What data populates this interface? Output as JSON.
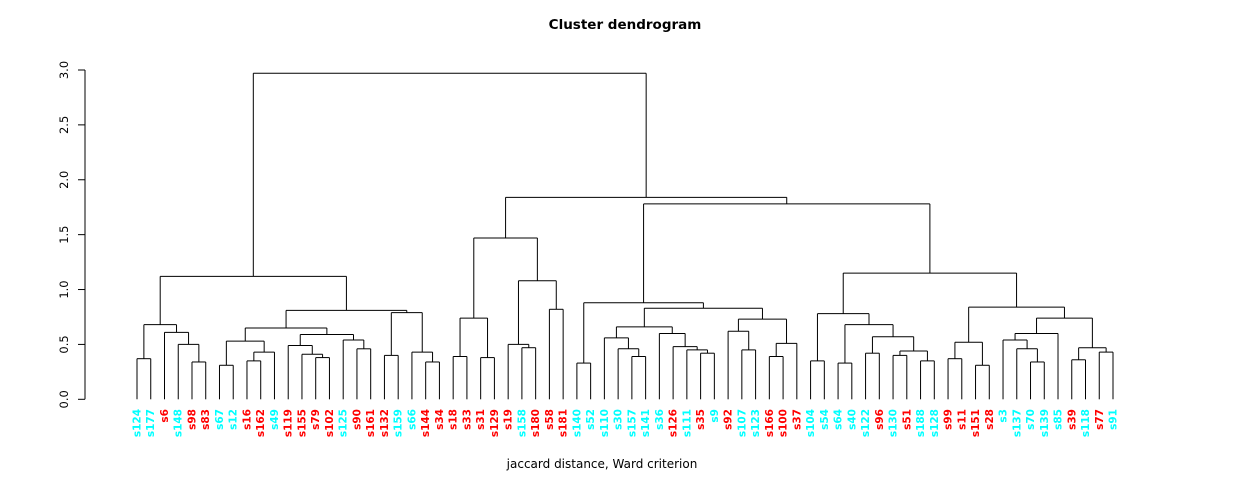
{
  "chart_data": {
    "type": "dendrogram",
    "title": "Cluster dendrogram",
    "xlabel": "jaccard distance, Ward criterion",
    "ylabel": "",
    "ylim": [
      0,
      3
    ],
    "yticks": [
      0.0,
      0.5,
      1.0,
      1.5,
      2.0,
      2.5,
      3.0
    ],
    "grid": false,
    "legend": "none",
    "colors": {
      "red": "#ff0000",
      "cyan": "#00ffff",
      "line": "#000000"
    },
    "leaves": [
      {
        "label": "s124",
        "color": "cyan"
      },
      {
        "label": "s177",
        "color": "cyan"
      },
      {
        "label": "s6",
        "color": "red"
      },
      {
        "label": "s148",
        "color": "cyan"
      },
      {
        "label": "s98",
        "color": "red"
      },
      {
        "label": "s83",
        "color": "red"
      },
      {
        "label": "s67",
        "color": "cyan"
      },
      {
        "label": "s12",
        "color": "cyan"
      },
      {
        "label": "s16",
        "color": "red"
      },
      {
        "label": "s162",
        "color": "red"
      },
      {
        "label": "s49",
        "color": "cyan"
      },
      {
        "label": "s119",
        "color": "red"
      },
      {
        "label": "s155",
        "color": "red"
      },
      {
        "label": "s79",
        "color": "red"
      },
      {
        "label": "s102",
        "color": "red"
      },
      {
        "label": "s125",
        "color": "cyan"
      },
      {
        "label": "s90",
        "color": "red"
      },
      {
        "label": "s161",
        "color": "red"
      },
      {
        "label": "s132",
        "color": "red"
      },
      {
        "label": "s159",
        "color": "cyan"
      },
      {
        "label": "s66",
        "color": "cyan"
      },
      {
        "label": "s144",
        "color": "red"
      },
      {
        "label": "s34",
        "color": "red"
      },
      {
        "label": "s18",
        "color": "red"
      },
      {
        "label": "s33",
        "color": "red"
      },
      {
        "label": "s31",
        "color": "red"
      },
      {
        "label": "s129",
        "color": "red"
      },
      {
        "label": "s19",
        "color": "red"
      },
      {
        "label": "s158",
        "color": "cyan"
      },
      {
        "label": "s180",
        "color": "red"
      },
      {
        "label": "s58",
        "color": "red"
      },
      {
        "label": "s181",
        "color": "red"
      },
      {
        "label": "s140",
        "color": "cyan"
      },
      {
        "label": "s52",
        "color": "cyan"
      },
      {
        "label": "s110",
        "color": "cyan"
      },
      {
        "label": "s30",
        "color": "cyan"
      },
      {
        "label": "s157",
        "color": "cyan"
      },
      {
        "label": "s141",
        "color": "cyan"
      },
      {
        "label": "s36",
        "color": "cyan"
      },
      {
        "label": "s126",
        "color": "red"
      },
      {
        "label": "s111",
        "color": "cyan"
      },
      {
        "label": "s35",
        "color": "red"
      },
      {
        "label": "s9",
        "color": "cyan"
      },
      {
        "label": "s92",
        "color": "red"
      },
      {
        "label": "s107",
        "color": "cyan"
      },
      {
        "label": "s123",
        "color": "cyan"
      },
      {
        "label": "s166",
        "color": "red"
      },
      {
        "label": "s100",
        "color": "red"
      },
      {
        "label": "s37",
        "color": "red"
      },
      {
        "label": "s104",
        "color": "cyan"
      },
      {
        "label": "s54",
        "color": "cyan"
      },
      {
        "label": "s64",
        "color": "cyan"
      },
      {
        "label": "s40",
        "color": "cyan"
      },
      {
        "label": "s122",
        "color": "cyan"
      },
      {
        "label": "s96",
        "color": "red"
      },
      {
        "label": "s130",
        "color": "cyan"
      },
      {
        "label": "s51",
        "color": "red"
      },
      {
        "label": "s188",
        "color": "cyan"
      },
      {
        "label": "s128",
        "color": "cyan"
      },
      {
        "label": "s99",
        "color": "red"
      },
      {
        "label": "s11",
        "color": "red"
      },
      {
        "label": "s151",
        "color": "red"
      },
      {
        "label": "s28",
        "color": "red"
      },
      {
        "label": "s3",
        "color": "cyan"
      },
      {
        "label": "s137",
        "color": "cyan"
      },
      {
        "label": "s70",
        "color": "cyan"
      },
      {
        "label": "s139",
        "color": "cyan"
      },
      {
        "label": "s85",
        "color": "cyan"
      },
      {
        "label": "s39",
        "color": "red"
      },
      {
        "label": "s118",
        "color": "cyan"
      },
      {
        "label": "s77",
        "color": "red"
      },
      {
        "label": "s91",
        "color": "cyan"
      }
    ],
    "tree": {
      "h": 2.97,
      "c": [
        {
          "h": 1.12,
          "c": [
            {
              "h": 0.68,
              "c": [
                {
                  "h": 0.37,
                  "c": [
                    "s124",
                    "s177"
                  ]
                },
                {
                  "h": 0.61,
                  "c": [
                    "s6",
                    {
                      "h": 0.5,
                      "c": [
                        "s148",
                        {
                          "h": 0.34,
                          "c": [
                            "s98",
                            "s83"
                          ]
                        }
                      ]
                    }
                  ]
                }
              ]
            },
            {
              "h": 0.81,
              "c": [
                {
                  "h": 0.65,
                  "c": [
                    {
                      "h": 0.53,
                      "c": [
                        {
                          "h": 0.31,
                          "c": [
                            "s67",
                            "s12"
                          ]
                        },
                        {
                          "h": 0.43,
                          "c": [
                            {
                              "h": 0.35,
                              "c": [
                                "s16",
                                "s162"
                              ]
                            },
                            "s49"
                          ]
                        }
                      ]
                    },
                    {
                      "h": 0.59,
                      "c": [
                        {
                          "h": 0.49,
                          "c": [
                            "s119",
                            {
                              "h": 0.41,
                              "c": [
                                "s155",
                                {
                                  "h": 0.38,
                                  "c": [
                                    "s79",
                                    "s102"
                                  ]
                                }
                              ]
                            }
                          ]
                        },
                        {
                          "h": 0.54,
                          "c": [
                            "s125",
                            {
                              "h": 0.46,
                              "c": [
                                "s90",
                                "s161"
                              ]
                            }
                          ]
                        }
                      ]
                    }
                  ]
                },
                {
                  "h": 0.79,
                  "c": [
                    {
                      "h": 0.4,
                      "c": [
                        "s132",
                        "s159"
                      ]
                    },
                    {
                      "h": 0.43,
                      "c": [
                        "s66",
                        {
                          "h": 0.34,
                          "c": [
                            "s144",
                            "s34"
                          ]
                        }
                      ]
                    }
                  ]
                }
              ]
            }
          ]
        },
        {
          "h": 1.84,
          "c": [
            {
              "h": 1.47,
              "c": [
                {
                  "h": 0.74,
                  "c": [
                    {
                      "h": 0.39,
                      "c": [
                        "s18",
                        "s33"
                      ]
                    },
                    {
                      "h": 0.38,
                      "c": [
                        "s31",
                        "s129"
                      ]
                    }
                  ]
                },
                {
                  "h": 1.08,
                  "c": [
                    {
                      "h": 0.5,
                      "c": [
                        "s19",
                        {
                          "h": 0.47,
                          "c": [
                            "s158",
                            "s180"
                          ]
                        }
                      ]
                    },
                    {
                      "h": 0.82,
                      "c": [
                        "s58",
                        "s181"
                      ]
                    }
                  ]
                }
              ]
            },
            {
              "h": 1.78,
              "c": [
                {
                  "h": 0.88,
                  "c": [
                    {
                      "h": 0.33,
                      "c": [
                        "s140",
                        "s52"
                      ]
                    },
                    {
                      "h": 0.83,
                      "c": [
                        {
                          "h": 0.66,
                          "c": [
                            {
                              "h": 0.56,
                              "c": [
                                "s110",
                                {
                                  "h": 0.46,
                                  "c": [
                                    "s30",
                                    {
                                      "h": 0.39,
                                      "c": [
                                        "s157",
                                        "s141"
                                      ]
                                    }
                                  ]
                                }
                              ]
                            },
                            {
                              "h": 0.6,
                              "c": [
                                "s36",
                                {
                                  "h": 0.48,
                                  "c": [
                                    "s126",
                                    {
                                      "h": 0.45,
                                      "c": [
                                        "s111",
                                        {
                                          "h": 0.42,
                                          "c": [
                                            "s35",
                                            "s9"
                                          ]
                                        }
                                      ]
                                    }
                                  ]
                                }
                              ]
                            }
                          ]
                        },
                        {
                          "h": 0.73,
                          "c": [
                            {
                              "h": 0.62,
                              "c": [
                                "s92",
                                {
                                  "h": 0.45,
                                  "c": [
                                    "s107",
                                    "s123"
                                  ]
                                }
                              ]
                            },
                            {
                              "h": 0.51,
                              "c": [
                                {
                                  "h": 0.39,
                                  "c": [
                                    "s166",
                                    "s100"
                                  ]
                                },
                                "s37"
                              ]
                            }
                          ]
                        }
                      ]
                    }
                  ]
                },
                {
                  "h": 1.15,
                  "c": [
                    {
                      "h": 0.78,
                      "c": [
                        {
                          "h": 0.35,
                          "c": [
                            "s104",
                            "s54"
                          ]
                        },
                        {
                          "h": 0.68,
                          "c": [
                            {
                              "h": 0.33,
                              "c": [
                                "s64",
                                "s40"
                              ]
                            },
                            {
                              "h": 0.57,
                              "c": [
                                {
                                  "h": 0.42,
                                  "c": [
                                    "s122",
                                    "s96"
                                  ]
                                },
                                {
                                  "h": 0.44,
                                  "c": [
                                    {
                                      "h": 0.4,
                                      "c": [
                                        "s130",
                                        "s51"
                                      ]
                                    },
                                    {
                                      "h": 0.35,
                                      "c": [
                                        "s188",
                                        "s128"
                                      ]
                                    }
                                  ]
                                }
                              ]
                            }
                          ]
                        }
                      ]
                    },
                    {
                      "h": 0.84,
                      "c": [
                        {
                          "h": 0.52,
                          "c": [
                            {
                              "h": 0.37,
                              "c": [
                                "s99",
                                "s11"
                              ]
                            },
                            {
                              "h": 0.31,
                              "c": [
                                "s151",
                                "s28"
                              ]
                            }
                          ]
                        },
                        {
                          "h": 0.74,
                          "c": [
                            {
                              "h": 0.6,
                              "c": [
                                {
                                  "h": 0.54,
                                  "c": [
                                    "s3",
                                    {
                                      "h": 0.46,
                                      "c": [
                                        "s137",
                                        {
                                          "h": 0.34,
                                          "c": [
                                            "s70",
                                            "s139"
                                          ]
                                        }
                                      ]
                                    }
                                  ]
                                },
                                "s85"
                              ]
                            },
                            {
                              "h": 0.47,
                              "c": [
                                {
                                  "h": 0.36,
                                  "c": [
                                    "s39",
                                    "s118"
                                  ]
                                },
                                {
                                  "h": 0.43,
                                  "c": [
                                    "s77",
                                    "s91"
                                  ]
                                }
                              ]
                            }
                          ]
                        }
                      ]
                    }
                  ]
                }
              ]
            }
          ]
        }
      ]
    }
  }
}
